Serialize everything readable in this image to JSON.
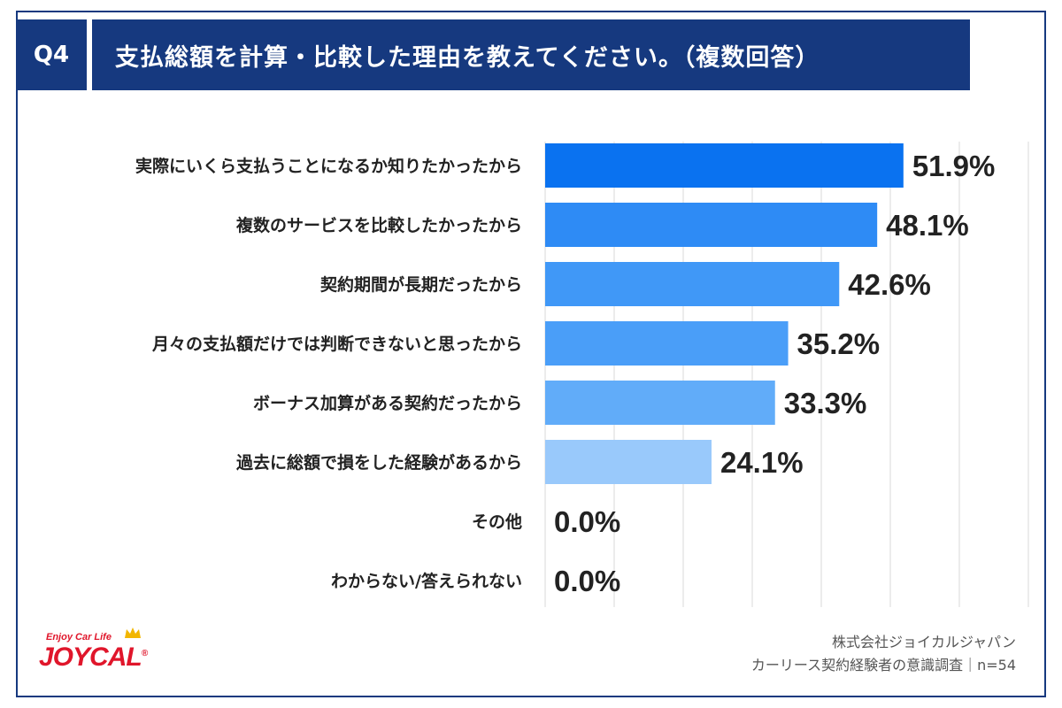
{
  "question": {
    "badge": "Q4",
    "title": "支払総額を計算・比較した理由を教えてください。（複数回答）"
  },
  "colors": {
    "header_bg": "#16397f",
    "bar_colors": [
      "#0a72f0",
      "#2e8bf5",
      "#4098f7",
      "#4a9ef8",
      "#61acf9",
      "#99c9fb",
      "#99c9fb",
      "#99c9fb"
    ],
    "grid": "#d9d9d9"
  },
  "chart_data": {
    "type": "bar",
    "orientation": "horizontal",
    "categories": [
      "実際にいくら支払うことになるか知りたかったから",
      "複数のサービスを比較したかったから",
      "契約期間が長期だったから",
      "月々の支払額だけでは判断できないと思ったから",
      "ボーナス加算がある契約だったから",
      "過去に総額で損をした経験があるから",
      "その他",
      "わからない/答えられない"
    ],
    "values": [
      51.9,
      48.1,
      42.6,
      35.2,
      33.3,
      24.1,
      0.0,
      0.0
    ],
    "value_labels": [
      "51.9%",
      "48.1%",
      "42.6%",
      "35.2%",
      "33.3%",
      "24.1%",
      "0.0%",
      "0.0%"
    ],
    "xlim": [
      0,
      70
    ],
    "grid": true,
    "xlabel": "",
    "ylabel": ""
  },
  "footer": {
    "company": "株式会社ジョイカルジャパン",
    "survey": "カーリース契約経験者の意識調査｜n=54"
  },
  "logo": {
    "tagline": "Enjoy Car Life",
    "brand": "JOYCAL",
    "registered": "®"
  }
}
